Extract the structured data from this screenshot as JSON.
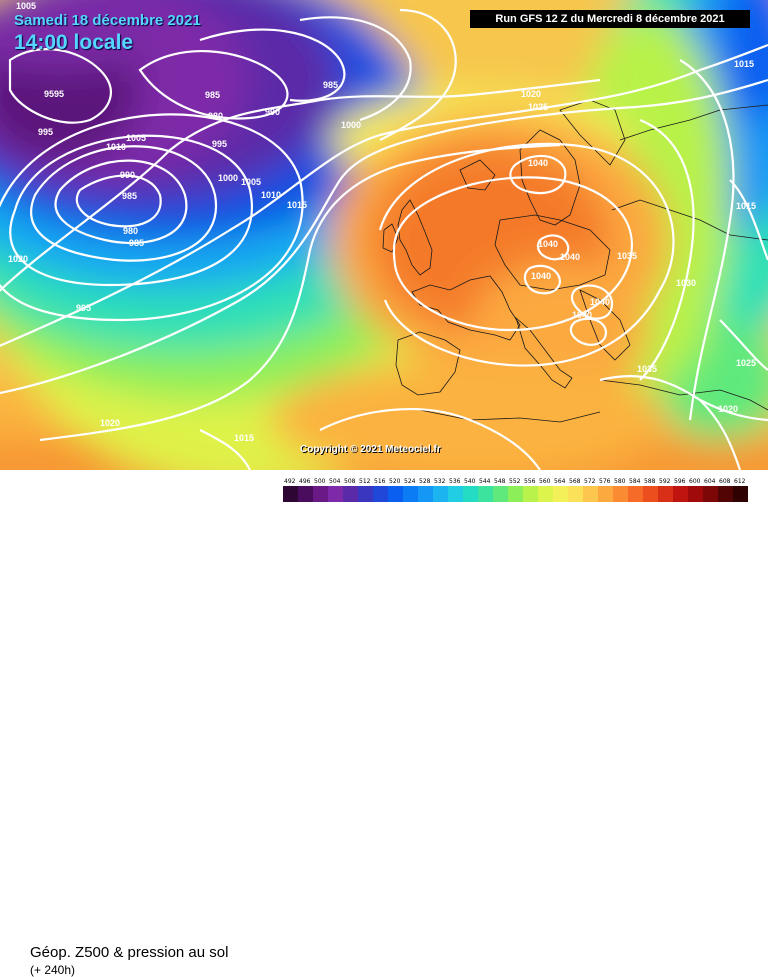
{
  "header": {
    "date": "Samedi 18 décembre 2021",
    "time": "14:00 locale",
    "run": "Run GFS 12 Z du Mercredi 8 décembre 2021"
  },
  "footer": {
    "title": "Géop. Z500 & pression au sol",
    "subtitle": "(+ 240h)",
    "copyright": "Copyright © 2021 Meteociel.fr"
  },
  "scale": {
    "ticks": [
      "492",
      "496",
      "500",
      "504",
      "508",
      "512",
      "516",
      "520",
      "524",
      "528",
      "532",
      "536",
      "540",
      "544",
      "548",
      "552",
      "556",
      "560",
      "564",
      "568",
      "572",
      "576",
      "580",
      "584",
      "588",
      "592",
      "596",
      "600",
      "604",
      "608",
      "612"
    ],
    "colors": [
      "#2d0633",
      "#4a0c5c",
      "#6a1a87",
      "#7e2aa8",
      "#5a2aa8",
      "#3a36c0",
      "#1f48d8",
      "#0b5ff0",
      "#0c7cf5",
      "#1597f5",
      "#1cb4f0",
      "#20cde2",
      "#24dcc4",
      "#3be39e",
      "#5fe97c",
      "#8cef5a",
      "#b8f24a",
      "#dcf44b",
      "#f4f05a",
      "#fbe05a",
      "#fdc64f",
      "#fca940",
      "#fb8b33",
      "#f66b28",
      "#ec4e1e",
      "#d92f17",
      "#c01410",
      "#a10a0a",
      "#7d0607",
      "#520304",
      "#300101"
    ]
  },
  "isobars": [
    "9595",
    "995",
    "985",
    "980",
    "990",
    "1005",
    "1010",
    "985",
    "980",
    "985",
    "995",
    "1005",
    "1000",
    "990",
    "1000",
    "1005",
    "1010",
    "1015",
    "985",
    "995",
    "1020",
    "1025",
    "1040",
    "1040",
    "1040",
    "1040",
    "1035",
    "1040",
    "1040",
    "1030",
    "1015",
    "1015",
    "1020",
    "1025",
    "1035",
    "1020",
    "1015",
    "1020",
    "1015"
  ]
}
